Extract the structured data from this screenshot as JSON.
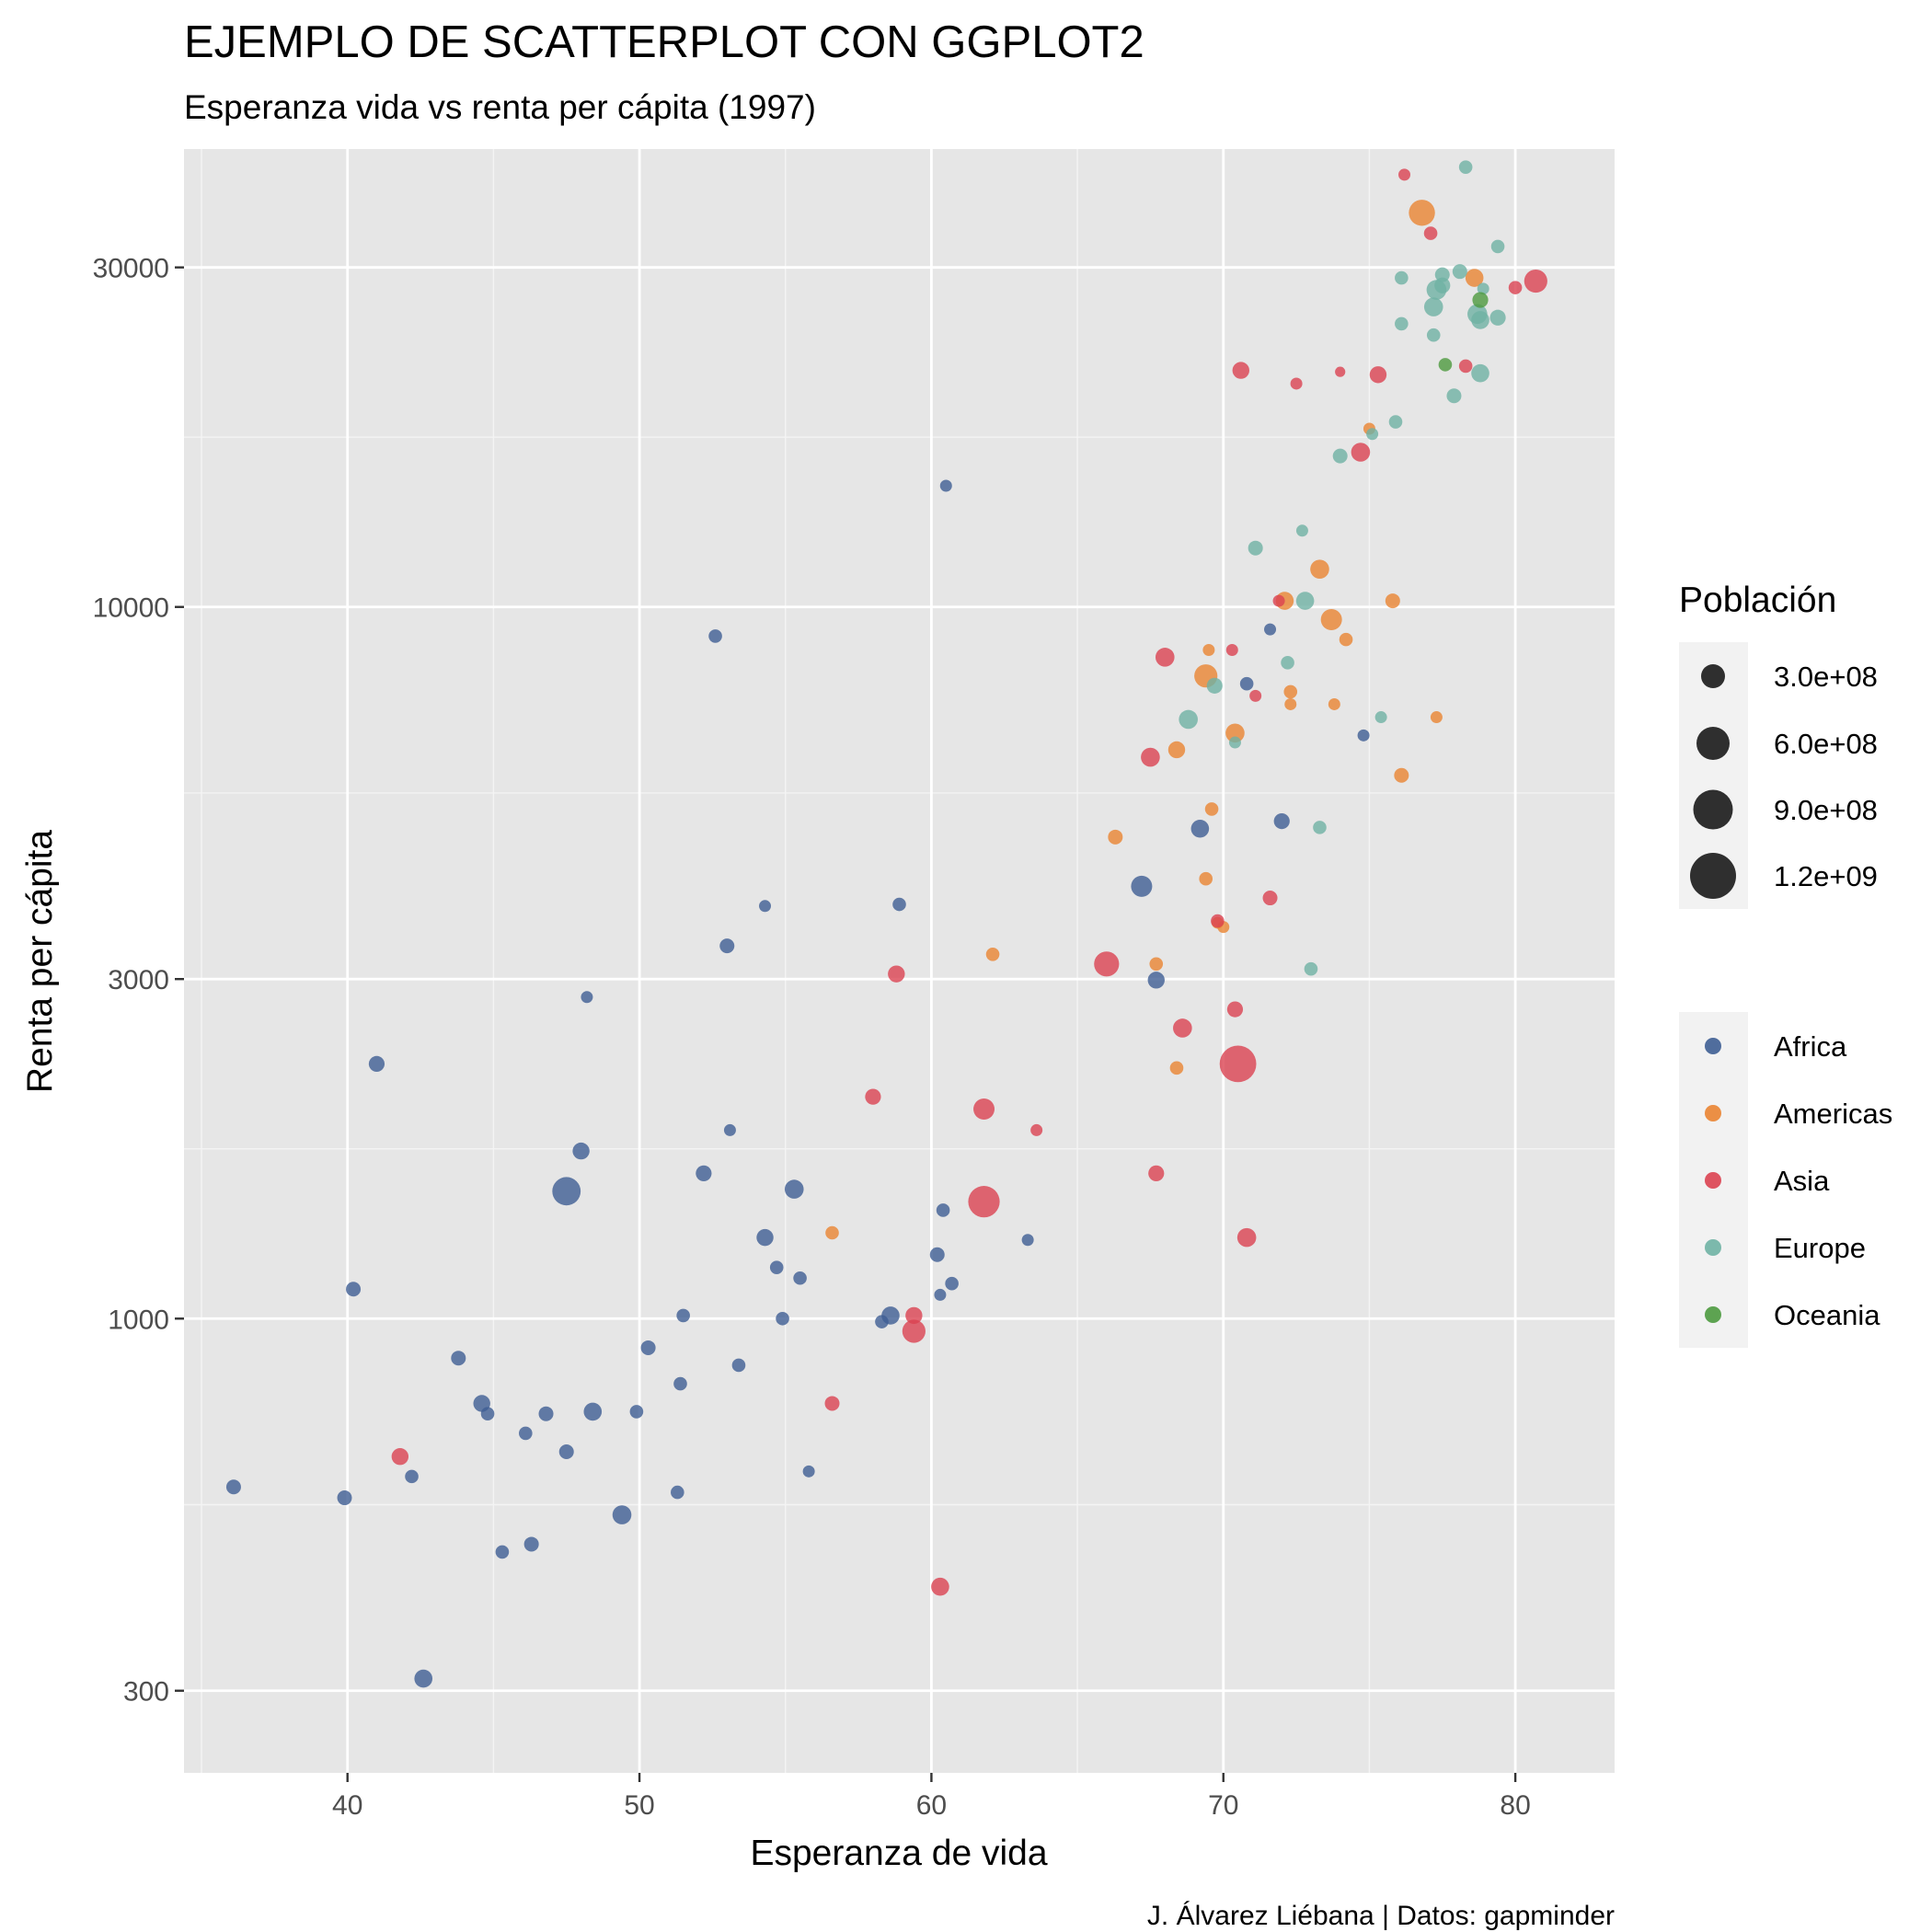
{
  "chart_data": {
    "type": "scatter",
    "title": "EJEMPLO DE SCATTERPLOT CON GGPLOT2",
    "subtitle": "Esperanza vida vs renta per cápita (1997)",
    "caption": "J. Álvarez Liébana | Datos: gapminder",
    "xlabel": "Esperanza de vida",
    "ylabel": "Renta per cápita",
    "x_scale": "linear",
    "y_scale": "log10",
    "xlim": [
      34.4,
      83.4
    ],
    "ylim": [
      230,
      44000
    ],
    "x_ticks": [
      40,
      50,
      60,
      70,
      80
    ],
    "x_tick_labels": [
      "40",
      "50",
      "60",
      "70",
      "80"
    ],
    "y_ticks": [
      300,
      1000,
      3000,
      10000,
      30000
    ],
    "y_tick_labels": [
      "300",
      "1000",
      "3000",
      "10000",
      "30000"
    ],
    "grid": true,
    "size_legend": {
      "title": "Población",
      "values": [
        300000000,
        600000000,
        900000000,
        1200000000
      ],
      "labels": [
        "3.0e+08",
        "6.0e+08",
        "9.0e+08",
        "1.2e+09"
      ]
    },
    "color_legend": {
      "placement": "right"
    },
    "series": [
      {
        "name": "Africa",
        "color": "#3e5e93",
        "points": [
          [
            36.1,
            580,
            12
          ],
          [
            39.9,
            560,
            12
          ],
          [
            40.2,
            1100,
            12
          ],
          [
            41.0,
            2280,
            14
          ],
          [
            42.2,
            600,
            10
          ],
          [
            42.6,
            312,
            18
          ],
          [
            43.8,
            880,
            12
          ],
          [
            44.6,
            760,
            16
          ],
          [
            44.8,
            735,
            10
          ],
          [
            45.3,
            470,
            10
          ],
          [
            46.1,
            690,
            10
          ],
          [
            46.3,
            482,
            12
          ],
          [
            46.8,
            735,
            12
          ],
          [
            47.5,
            650,
            12
          ],
          [
            47.5,
            1510,
            45
          ],
          [
            48.0,
            1720,
            16
          ],
          [
            48.2,
            2830,
            8
          ],
          [
            48.4,
            740,
            18
          ],
          [
            49.4,
            530,
            20
          ],
          [
            49.9,
            740,
            10
          ],
          [
            50.3,
            910,
            12
          ],
          [
            51.3,
            570,
            10
          ],
          [
            51.4,
            810,
            10
          ],
          [
            51.5,
            1010,
            10
          ],
          [
            52.2,
            1600,
            14
          ],
          [
            52.6,
            9100,
            10
          ],
          [
            53.0,
            3340,
            12
          ],
          [
            53.1,
            1840,
            8
          ],
          [
            53.4,
            860,
            10
          ],
          [
            54.3,
            1300,
            16
          ],
          [
            54.3,
            3800,
            8
          ],
          [
            54.7,
            1180,
            10
          ],
          [
            54.9,
            1000,
            10
          ],
          [
            55.3,
            1520,
            20
          ],
          [
            55.5,
            1140,
            10
          ],
          [
            55.8,
            610,
            8
          ],
          [
            58.3,
            990,
            10
          ],
          [
            58.6,
            1010,
            18
          ],
          [
            58.9,
            3820,
            10
          ],
          [
            60.2,
            1230,
            12
          ],
          [
            60.3,
            1080,
            8
          ],
          [
            60.4,
            1420,
            10
          ],
          [
            60.5,
            14800,
            8
          ],
          [
            60.7,
            1120,
            10
          ],
          [
            63.3,
            1290,
            8
          ],
          [
            67.2,
            4050,
            25
          ],
          [
            67.7,
            2990,
            16
          ],
          [
            69.2,
            4880,
            18
          ],
          [
            70.8,
            7800,
            10
          ],
          [
            71.6,
            9300,
            8
          ],
          [
            72.0,
            5000,
            14
          ],
          [
            74.8,
            6600,
            8
          ]
        ]
      },
      {
        "name": "Americas",
        "color": "#ea8432",
        "points": [
          [
            56.6,
            1320,
            10
          ],
          [
            62.1,
            3250,
            10
          ],
          [
            66.3,
            4750,
            12
          ],
          [
            67.7,
            3150,
            10
          ],
          [
            68.4,
            6300,
            16
          ],
          [
            68.4,
            2250,
            10
          ],
          [
            69.4,
            8000,
            30
          ],
          [
            69.4,
            4150,
            10
          ],
          [
            69.5,
            8700,
            8
          ],
          [
            69.6,
            5200,
            10
          ],
          [
            69.8,
            3600,
            8
          ],
          [
            70.0,
            3550,
            8
          ],
          [
            70.4,
            6650,
            20
          ],
          [
            72.1,
            10200,
            18
          ],
          [
            72.3,
            7300,
            8
          ],
          [
            72.3,
            7600,
            10
          ],
          [
            73.3,
            11300,
            20
          ],
          [
            73.7,
            9600,
            25
          ],
          [
            73.8,
            7300,
            8
          ],
          [
            74.2,
            9000,
            10
          ],
          [
            75.0,
            17800,
            8
          ],
          [
            75.8,
            10200,
            12
          ],
          [
            76.1,
            5800,
            12
          ],
          [
            77.3,
            7000,
            8
          ],
          [
            76.8,
            35800,
            38
          ],
          [
            78.6,
            29000,
            18
          ]
        ]
      },
      {
        "name": "Asia",
        "color": "#db4251",
        "points": [
          [
            41.8,
            640,
            16
          ],
          [
            56.6,
            760,
            12
          ],
          [
            58.0,
            2050,
            14
          ],
          [
            58.8,
            3050,
            16
          ],
          [
            59.4,
            1010,
            16
          ],
          [
            59.4,
            960,
            30
          ],
          [
            60.3,
            420,
            18
          ],
          [
            61.8,
            1460,
            55
          ],
          [
            61.8,
            1970,
            25
          ],
          [
            63.6,
            1840,
            8
          ],
          [
            66.0,
            3150,
            35
          ],
          [
            67.5,
            6150,
            20
          ],
          [
            67.7,
            1600,
            14
          ],
          [
            68.0,
            8500,
            20
          ],
          [
            68.6,
            2560,
            20
          ],
          [
            69.8,
            3620,
            10
          ],
          [
            70.3,
            8700,
            8
          ],
          [
            70.4,
            2720,
            14
          ],
          [
            70.5,
            2280,
            75
          ],
          [
            70.6,
            21500,
            16
          ],
          [
            70.8,
            1300,
            20
          ],
          [
            71.1,
            7500,
            8
          ],
          [
            71.6,
            3900,
            12
          ],
          [
            71.9,
            10200,
            8
          ],
          [
            72.5,
            20600,
            8
          ],
          [
            74.0,
            21400,
            6
          ],
          [
            74.7,
            16500,
            20
          ],
          [
            75.3,
            21200,
            16
          ],
          [
            76.2,
            40500,
            8
          ],
          [
            77.1,
            33500,
            10
          ],
          [
            78.3,
            21800,
            10
          ],
          [
            80.0,
            28100,
            10
          ],
          [
            80.7,
            28700,
            30
          ]
        ]
      },
      {
        "name": "Europe",
        "color": "#6fb2a4",
        "points": [
          [
            68.8,
            6950,
            20
          ],
          [
            69.7,
            7750,
            14
          ],
          [
            70.4,
            6450,
            8
          ],
          [
            71.1,
            12100,
            12
          ],
          [
            72.2,
            8350,
            10
          ],
          [
            72.7,
            12800,
            8
          ],
          [
            72.8,
            10200,
            18
          ],
          [
            73.0,
            3100,
            10
          ],
          [
            73.3,
            4900,
            10
          ],
          [
            74.0,
            16300,
            12
          ],
          [
            75.1,
            17500,
            8
          ],
          [
            75.4,
            7000,
            8
          ],
          [
            75.9,
            18200,
            10
          ],
          [
            76.1,
            29000,
            10
          ],
          [
            76.1,
            25000,
            10
          ],
          [
            77.2,
            26400,
            20
          ],
          [
            77.2,
            24100,
            10
          ],
          [
            77.3,
            27900,
            22
          ],
          [
            77.5,
            28300,
            14
          ],
          [
            77.5,
            29300,
            12
          ],
          [
            77.9,
            19800,
            12
          ],
          [
            78.1,
            29600,
            12
          ],
          [
            78.3,
            41500,
            10
          ],
          [
            78.7,
            25800,
            22
          ],
          [
            78.8,
            25300,
            18
          ],
          [
            78.8,
            21300,
            18
          ],
          [
            78.9,
            28000,
            8
          ],
          [
            79.4,
            25500,
            14
          ],
          [
            79.4,
            32100,
            10
          ]
        ]
      },
      {
        "name": "Oceania",
        "color": "#4d9a3f",
        "points": [
          [
            77.6,
            21900,
            10
          ],
          [
            78.8,
            27000,
            14
          ]
        ]
      }
    ]
  }
}
